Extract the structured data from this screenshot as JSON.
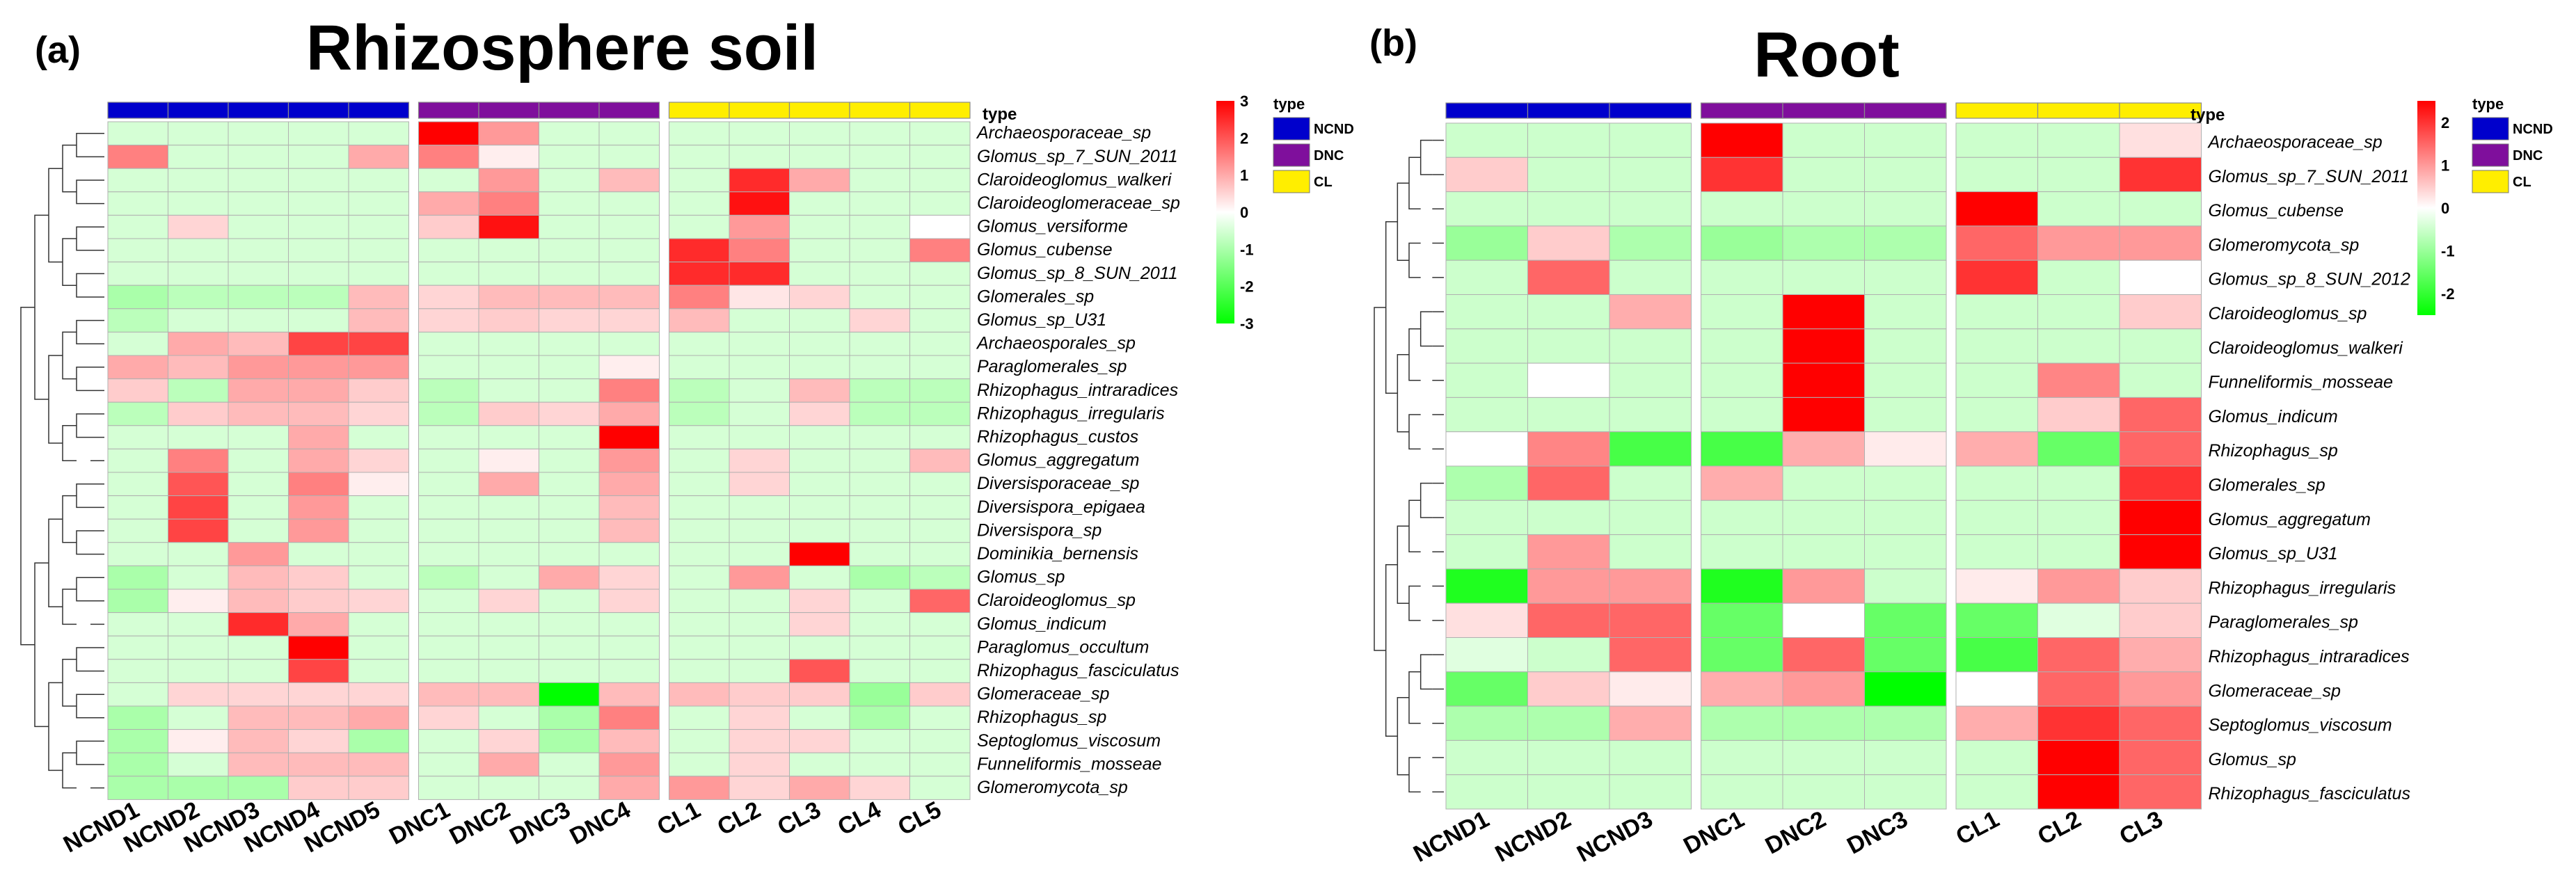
{
  "chart_data": [
    {
      "type": "heatmap",
      "panel_label": "(a)",
      "title": "Rhizosphere soil",
      "type_label": "type",
      "columns": [
        "NCND1",
        "NCND2",
        "NCND3",
        "NCND4",
        "NCND5",
        "DNC1",
        "DNC2",
        "DNC3",
        "DNC4",
        "CL1",
        "CL2",
        "CL3",
        "CL4",
        "CL5"
      ],
      "column_groups": [
        "NCND",
        "NCND",
        "NCND",
        "NCND",
        "NCND",
        "DNC",
        "DNC",
        "DNC",
        "DNC",
        "CL",
        "CL",
        "CL",
        "CL",
        "CL"
      ],
      "rows": [
        "Archaeosporaceae_sp",
        "Glomus_sp_7_SUN_2011",
        "Claroideoglomus_walkeri",
        "Claroideoglomeraceae_sp",
        "Glomus_versiforme",
        "Glomus_cubense",
        "Glomus_sp_8_SUN_2011",
        "Glomerales_sp",
        "Glomus_sp_U31",
        "Archaeosporales_sp",
        "Paraglomerales_sp",
        "Rhizophagus_intraradices",
        "Rhizophagus_irregularis",
        "Rhizophagus_custos",
        "Glomus_aggregatum",
        "Diversisporaceae_sp",
        "Diversispora_epigaea",
        "Diversispora_sp",
        "Dominikia_bernensis",
        "Glomus_sp",
        "Claroideoglomus_sp",
        "Glomus_indicum",
        "Paraglomus_occultum",
        "Rhizophagus_fasciculatus",
        "Glomeraceae_sp",
        "Rhizophagus_sp",
        "Septoglomus_viscosum",
        "Funneliformis_mosseae",
        "Glomeromycota_sp"
      ],
      "values": [
        [
          -0.5,
          -0.5,
          -0.5,
          -0.5,
          -0.5,
          3.0,
          1.2,
          -0.5,
          -0.5,
          -0.5,
          -0.5,
          -0.5,
          -0.5,
          -0.5
        ],
        [
          1.5,
          -0.5,
          -0.5,
          -0.5,
          1.0,
          1.5,
          0.2,
          -0.5,
          -0.5,
          -0.5,
          -0.5,
          -0.5,
          -0.5,
          -0.5
        ],
        [
          -0.5,
          -0.5,
          -0.5,
          -0.5,
          -0.5,
          -0.5,
          1.2,
          -0.5,
          0.8,
          -0.5,
          2.5,
          1.0,
          -0.5,
          -0.5
        ],
        [
          -0.5,
          -0.5,
          -0.5,
          -0.5,
          -0.5,
          1.0,
          1.5,
          -0.5,
          -0.5,
          -0.5,
          2.8,
          -0.5,
          -0.5,
          -0.5
        ],
        [
          -0.5,
          0.5,
          -0.5,
          -0.5,
          -0.5,
          0.6,
          2.8,
          -0.5,
          -0.5,
          -0.5,
          1.2,
          -0.5,
          -0.5,
          0.0
        ],
        [
          -0.5,
          -0.5,
          -0.5,
          -0.5,
          -0.5,
          -0.5,
          -0.5,
          -0.5,
          -0.5,
          2.5,
          1.5,
          -0.5,
          -0.5,
          1.5
        ],
        [
          -0.5,
          -0.5,
          -0.5,
          -0.5,
          -0.5,
          -0.5,
          -0.5,
          -0.5,
          -0.5,
          2.5,
          2.5,
          -0.5,
          -0.5,
          -0.5
        ],
        [
          -1.0,
          -0.8,
          -0.8,
          -0.8,
          0.8,
          0.5,
          0.8,
          0.8,
          0.8,
          1.5,
          0.3,
          0.5,
          -0.5,
          -0.5
        ],
        [
          -0.8,
          -0.5,
          -0.5,
          -0.5,
          0.8,
          0.5,
          0.6,
          0.5,
          0.5,
          0.8,
          -0.5,
          -0.5,
          0.5,
          -0.5
        ],
        [
          -0.5,
          1.0,
          0.8,
          2.2,
          2.2,
          -0.5,
          -0.5,
          -0.5,
          -0.5,
          -0.5,
          -0.5,
          -0.5,
          -0.5,
          -0.5
        ],
        [
          1.0,
          0.8,
          1.2,
          1.2,
          1.2,
          -0.5,
          -0.5,
          -0.5,
          0.2,
          -0.5,
          -0.5,
          -0.5,
          -0.5,
          -0.5
        ],
        [
          0.6,
          -0.8,
          1.0,
          1.0,
          0.6,
          -0.8,
          -0.5,
          -0.5,
          1.5,
          -0.8,
          -0.5,
          0.8,
          -0.8,
          -0.8
        ],
        [
          -0.8,
          0.6,
          0.8,
          0.8,
          0.5,
          -0.8,
          0.6,
          0.5,
          1.0,
          -0.8,
          -0.5,
          0.5,
          -0.8,
          -0.8
        ],
        [
          -0.5,
          -0.5,
          -0.5,
          1.0,
          -0.5,
          -0.5,
          -0.5,
          -0.5,
          3.0,
          -0.5,
          -0.5,
          -0.5,
          -0.5,
          -0.5
        ],
        [
          -0.5,
          1.5,
          -0.5,
          1.0,
          0.5,
          -0.5,
          0.2,
          -0.5,
          1.2,
          -0.5,
          0.5,
          -0.5,
          -0.5,
          0.8
        ],
        [
          -0.5,
          2.0,
          -0.5,
          1.5,
          0.2,
          -0.5,
          1.0,
          -0.5,
          1.0,
          -0.5,
          0.5,
          -0.5,
          -0.5,
          -0.5
        ],
        [
          -0.5,
          2.2,
          -0.5,
          1.2,
          -0.5,
          -0.5,
          -0.5,
          -0.5,
          0.8,
          -0.5,
          -0.5,
          -0.5,
          -0.5,
          -0.5
        ],
        [
          -0.5,
          2.2,
          -0.5,
          1.2,
          -0.5,
          -0.5,
          -0.5,
          -0.5,
          0.8,
          -0.5,
          -0.5,
          -0.5,
          -0.5,
          -0.5
        ],
        [
          -0.5,
          -0.5,
          1.2,
          -0.5,
          -0.5,
          -0.5,
          -0.5,
          -0.5,
          -0.5,
          -0.5,
          -0.5,
          3.0,
          -0.5,
          -0.5
        ],
        [
          -1.0,
          -0.5,
          0.8,
          0.6,
          -0.5,
          -0.8,
          -0.5,
          1.0,
          0.5,
          -0.5,
          1.2,
          -0.5,
          -1.0,
          -0.8
        ],
        [
          -1.0,
          0.2,
          0.8,
          0.6,
          0.5,
          -0.5,
          0.5,
          -0.5,
          0.5,
          -0.5,
          -0.5,
          0.5,
          -0.5,
          1.8
        ],
        [
          -0.5,
          -0.5,
          2.5,
          1.0,
          -0.5,
          -0.5,
          -0.5,
          -0.5,
          -0.5,
          -0.5,
          -0.5,
          0.5,
          -0.5,
          -0.5
        ],
        [
          -0.5,
          -0.5,
          -0.5,
          3.0,
          -0.5,
          -0.5,
          -0.5,
          -0.5,
          -0.5,
          -0.5,
          -0.5,
          -0.5,
          -0.5,
          -0.5
        ],
        [
          -0.5,
          -0.5,
          -0.5,
          2.2,
          -0.5,
          -0.5,
          -0.5,
          -0.5,
          -0.5,
          -0.5,
          -0.5,
          2.0,
          -0.5,
          -0.5
        ],
        [
          -0.5,
          0.5,
          0.5,
          0.5,
          0.5,
          0.8,
          0.8,
          -3.0,
          0.8,
          0.8,
          0.6,
          0.6,
          -1.2,
          0.6
        ],
        [
          -1.0,
          -0.5,
          0.8,
          0.8,
          1.0,
          0.5,
          -0.5,
          -1.0,
          1.5,
          -0.5,
          0.5,
          -0.5,
          -1.0,
          -0.5
        ],
        [
          -1.0,
          0.2,
          0.8,
          0.5,
          -1.0,
          -0.5,
          0.5,
          -1.0,
          0.8,
          -0.5,
          0.5,
          0.5,
          -0.5,
          -0.5
        ],
        [
          -1.0,
          -0.5,
          0.8,
          0.8,
          0.8,
          -0.5,
          1.0,
          -0.5,
          1.2,
          -0.5,
          0.5,
          -0.5,
          -0.5,
          -0.5
        ],
        [
          -1.0,
          -1.0,
          -1.0,
          0.6,
          0.6,
          -0.5,
          -0.5,
          -0.5,
          1.0,
          1.2,
          0.5,
          1.0,
          0.5,
          -0.5
        ]
      ],
      "colorbar": {
        "min": -3,
        "max": 3,
        "ticks": [
          "3",
          "2",
          "1",
          "0",
          "-1",
          "-2",
          "-3"
        ]
      },
      "legend": {
        "title": "type",
        "items": [
          {
            "label": "NCND",
            "color": "#0000cc"
          },
          {
            "label": "DNC",
            "color": "#7f0f9c"
          },
          {
            "label": "CL",
            "color": "#ffee00"
          }
        ]
      }
    },
    {
      "type": "heatmap",
      "panel_label": "(b)",
      "title": "Root",
      "type_label": "type",
      "columns": [
        "NCND1",
        "NCND2",
        "NCND3",
        "DNC1",
        "DNC2",
        "DNC3",
        "CL1",
        "CL2",
        "CL3"
      ],
      "column_groups": [
        "NCND",
        "NCND",
        "NCND",
        "DNC",
        "DNC",
        "DNC",
        "CL",
        "CL",
        "CL"
      ],
      "rows": [
        "Archaeosporaceae_sp",
        "Glomus_sp_7_SUN_2011",
        "Glomus_cubense",
        "Glomeromycota_sp",
        "Glomus_sp_8_SUN_2012",
        "Claroideoglomus_sp",
        "Claroideoglomus_walkeri",
        "Funneliformis_mosseae",
        "Glomus_indicum",
        "Rhizophagus_sp",
        "Glomerales_sp",
        "Glomus_aggregatum",
        "Glomus_sp_U31",
        "Rhizophagus_irregularis",
        "Paraglomerales_sp",
        "Rhizophagus_intraradices",
        "Glomeraceae_sp",
        "Septoglomus_viscosum",
        "Glomus_sp",
        "Rhizophagus_fasciculatus"
      ],
      "values": [
        [
          -0.5,
          -0.5,
          -0.5,
          2.8,
          -0.5,
          -0.5,
          -0.5,
          -0.5,
          0.3
        ],
        [
          0.5,
          -0.5,
          -0.5,
          2.0,
          -0.5,
          -0.5,
          -0.5,
          -0.5,
          2.0
        ],
        [
          -0.5,
          -0.5,
          -0.5,
          -0.5,
          -0.5,
          -0.5,
          2.8,
          -0.5,
          -0.5
        ],
        [
          -1.0,
          0.5,
          -0.8,
          -1.0,
          -0.8,
          -0.8,
          1.5,
          1.0,
          1.0
        ],
        [
          -0.5,
          1.5,
          -0.5,
          -0.5,
          -0.5,
          -0.5,
          2.0,
          -0.5,
          0.0
        ],
        [
          -0.5,
          -0.5,
          0.8,
          -0.5,
          2.8,
          -0.5,
          -0.5,
          -0.5,
          0.5
        ],
        [
          -0.5,
          -0.5,
          -0.5,
          -0.5,
          2.8,
          -0.5,
          -0.5,
          -0.5,
          -0.5
        ],
        [
          -0.5,
          0.0,
          -0.5,
          -0.5,
          2.8,
          -0.5,
          -0.5,
          1.2,
          -0.5
        ],
        [
          -0.5,
          -0.5,
          -0.5,
          -0.5,
          2.5,
          -0.5,
          -0.5,
          0.5,
          1.5
        ],
        [
          0.0,
          1.2,
          -1.8,
          -1.8,
          0.8,
          0.2,
          0.8,
          -1.5,
          1.5
        ],
        [
          -0.8,
          1.5,
          -0.5,
          0.8,
          -0.5,
          -0.5,
          -0.5,
          -0.5,
          2.0
        ],
        [
          -0.5,
          -0.5,
          -0.5,
          -0.5,
          -0.5,
          -0.5,
          -0.5,
          -0.5,
          2.8
        ],
        [
          -0.5,
          1.0,
          -0.5,
          -0.5,
          -0.5,
          -0.5,
          -0.5,
          -0.5,
          2.8
        ],
        [
          -2.2,
          1.0,
          1.0,
          -2.2,
          1.0,
          -0.5,
          0.2,
          1.0,
          0.5
        ],
        [
          0.3,
          1.5,
          1.5,
          -1.5,
          0.0,
          -1.5,
          -1.5,
          -0.3,
          0.5
        ],
        [
          -0.3,
          -0.5,
          1.5,
          -1.5,
          1.5,
          -1.5,
          -1.8,
          1.5,
          0.8
        ],
        [
          -1.5,
          0.5,
          0.2,
          0.8,
          1.0,
          -2.8,
          0.0,
          1.5,
          1.0
        ],
        [
          -0.8,
          -0.8,
          0.8,
          -0.8,
          -0.8,
          -0.8,
          0.8,
          2.0,
          1.5
        ],
        [
          -0.5,
          -0.5,
          -0.5,
          -0.5,
          -0.5,
          -0.5,
          -0.5,
          2.8,
          1.5
        ],
        [
          -0.5,
          -0.5,
          -0.5,
          -0.5,
          -0.5,
          -0.5,
          -0.5,
          2.8,
          1.5
        ]
      ],
      "colorbar": {
        "min": -2.5,
        "max": 2.5,
        "ticks": [
          "2",
          "1",
          "0",
          "-1",
          "-2"
        ]
      },
      "legend": {
        "title": "type",
        "items": [
          {
            "label": "NCND",
            "color": "#0000cc"
          },
          {
            "label": "DNC",
            "color": "#7f0f9c"
          },
          {
            "label": "CL",
            "color": "#ffee00"
          }
        ]
      }
    }
  ]
}
